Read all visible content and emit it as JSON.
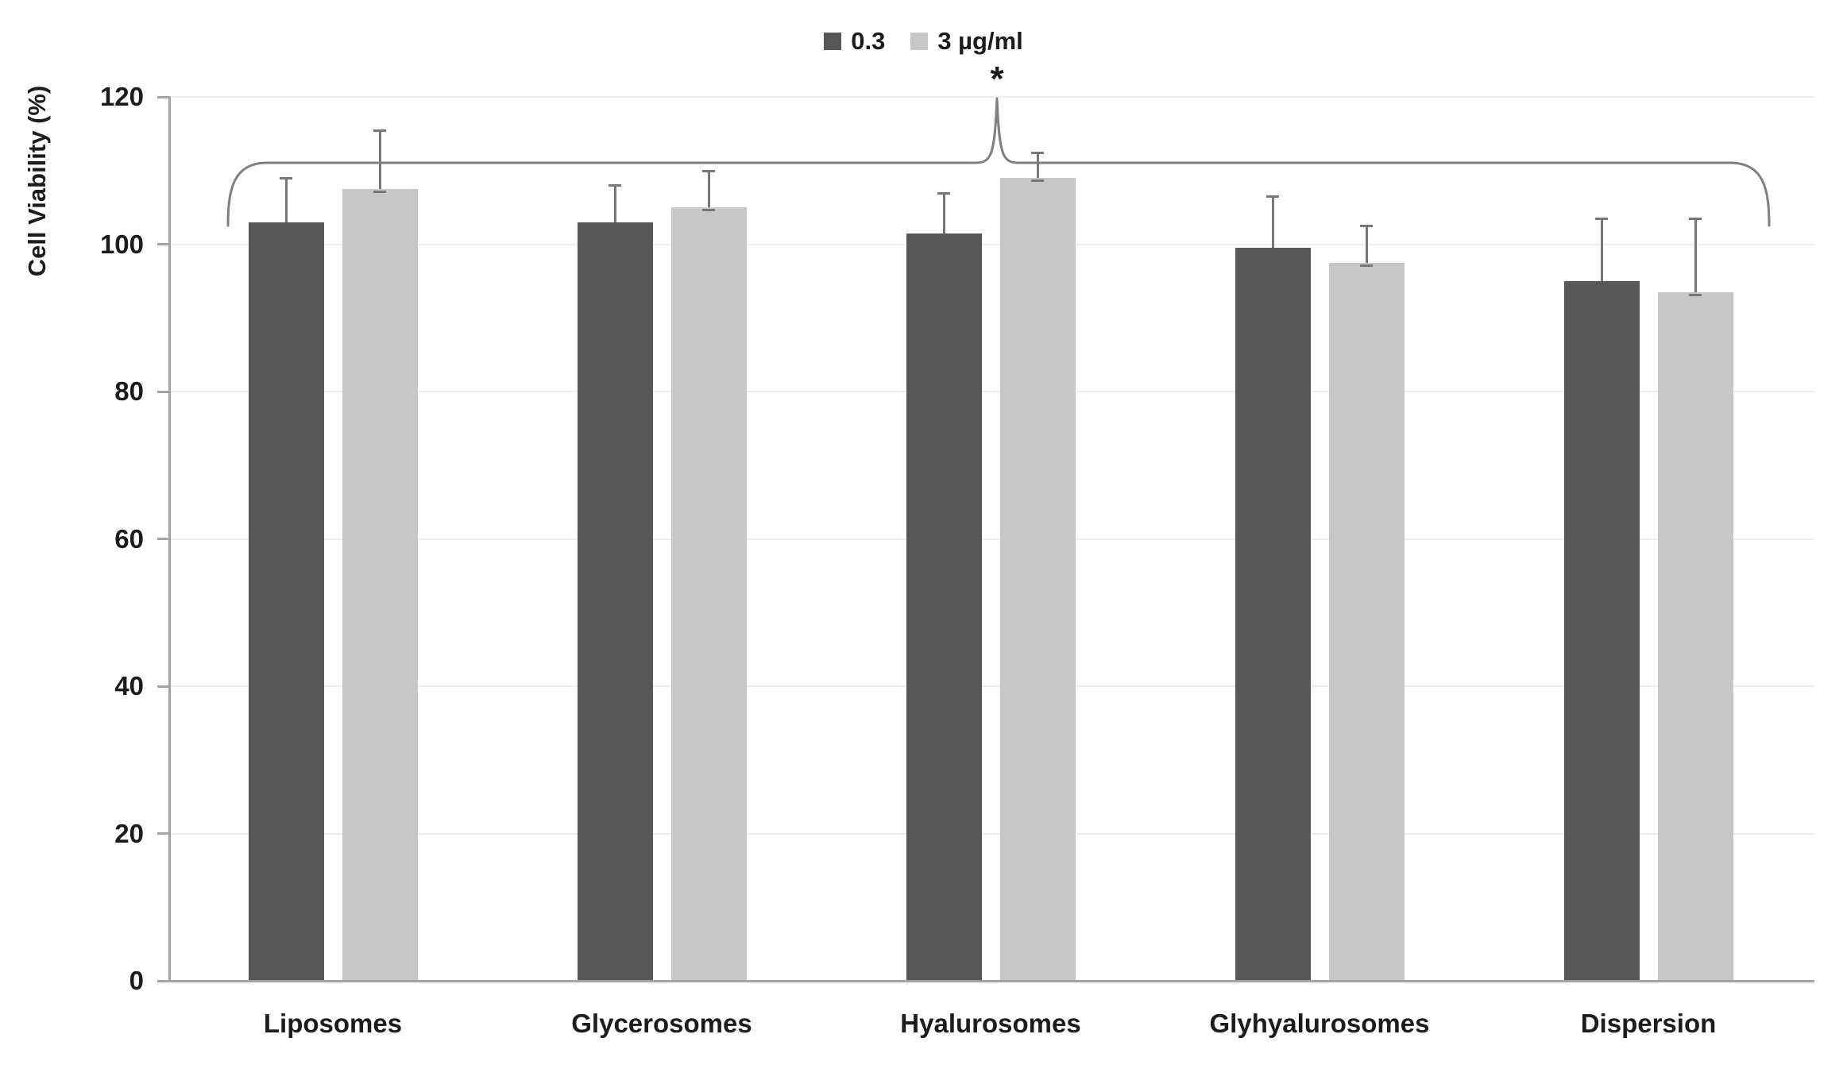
{
  "chart_data": {
    "type": "bar",
    "title": "",
    "xlabel": "",
    "ylabel": "Cell Viability (%)",
    "ylim": [
      0,
      120
    ],
    "yticks": [
      0,
      20,
      40,
      60,
      80,
      100,
      120
    ],
    "grid": "horizontal",
    "legend_position": "top-center",
    "categories": [
      "Liposomes",
      "Glycerosomes",
      "Hyalurosomes",
      "Glyhyalurosomes",
      "Dispersion"
    ],
    "series": [
      {
        "name": "0.3",
        "color": "#575757",
        "values": [
          103,
          103,
          101.5,
          99.5,
          95
        ],
        "errors": [
          6,
          5,
          5.5,
          7,
          8.5
        ]
      },
      {
        "name": "3 µg/ml",
        "color": "#c7c7c7",
        "values": [
          107.5,
          105,
          109,
          97.5,
          93.5
        ],
        "errors": [
          8,
          5,
          3.5,
          5,
          10
        ]
      }
    ],
    "annotation": {
      "symbol": "*",
      "type": "significance-bracket",
      "spans_categories": [
        "Liposomes",
        "Glycerosomes",
        "Hyalurosomes",
        "Glyhyalurosomes",
        "Dispersion"
      ],
      "peak_above_category": "Hyalurosomes"
    }
  },
  "colors": {
    "axis": "#a3a3a3",
    "gridline": "#eeeeee",
    "error_bar": "#777777",
    "bracket": "#7f7f7f",
    "text": "#1c1c1c",
    "background": "#ffffff"
  }
}
